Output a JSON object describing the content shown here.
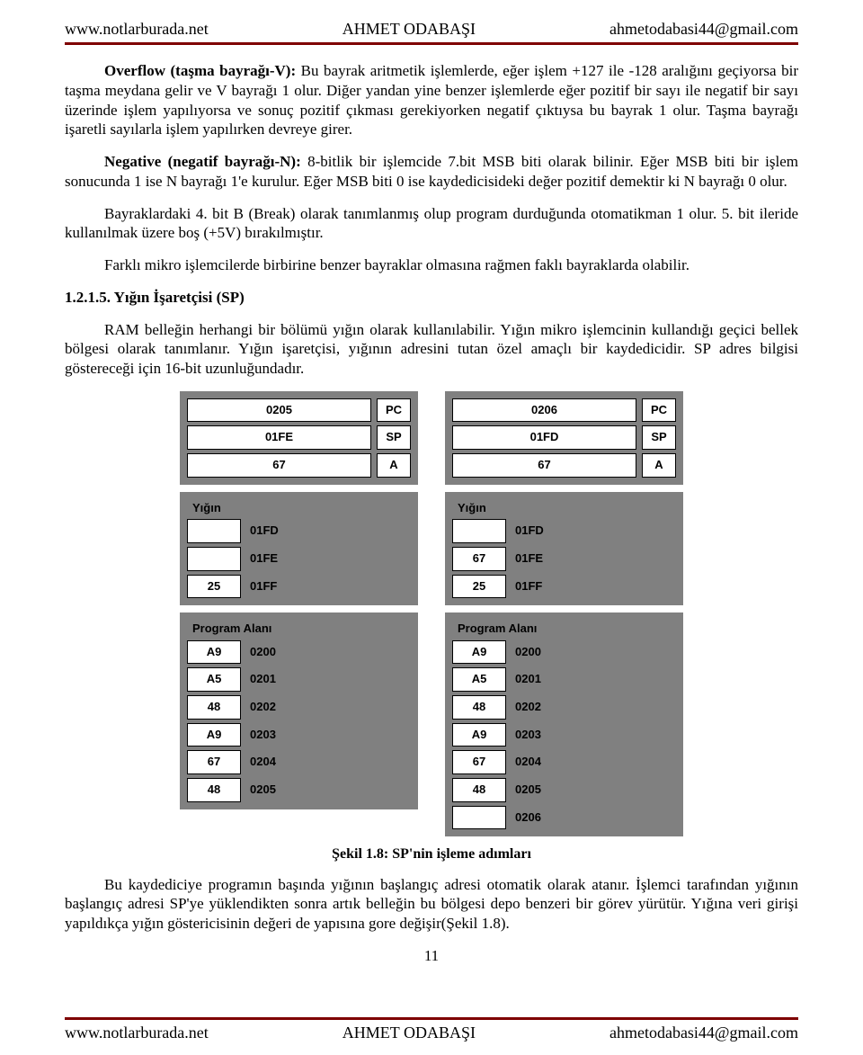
{
  "header": {
    "left": "www.notlarburada.net",
    "center": "AHMET ODABAŞI",
    "right": "ahmetodabasi44@gmail.com"
  },
  "p1_lead": "Overflow (taşma bayrağı-V):",
  "p1_rest": " Bu bayrak aritmetik işlemlerde, eğer işlem +127 ile -128 aralığını geçiyorsa bir taşma meydana gelir ve V bayrağı 1 olur. Diğer yandan yine benzer işlemlerde eğer pozitif bir sayı ile negatif bir sayı üzerinde işlem yapılıyorsa ve sonuç pozitif çıkması gerekiyorken negatif çıktıysa bu bayrak 1 olur. Taşma bayrağı işaretli sayılarla işlem yapılırken devreye girer.",
  "p2_lead": "Negative (negatif bayrağı-N):",
  "p2_rest": " 8-bitlik bir işlemcide 7.bit MSB biti olarak bilinir. Eğer MSB biti bir işlem sonucunda 1 ise N bayrağı 1'e kurulur. Eğer MSB biti 0 ise kaydedicisideki değer pozitif demektir ki N bayrağı 0 olur.",
  "p3": "Bayraklardaki 4. bit B (Break) olarak tanımlanmış olup program durduğunda otomatikman 1 olur. 5. bit ileride kullanılmak üzere boş (+5V) bırakılmıştır.",
  "p4": "Farklı mikro işlemcilerde birbirine benzer bayraklar olmasına rağmen faklı bayraklarda olabilir.",
  "section": "1.2.1.5. Yığın İşaretçisi (SP)",
  "p5": "RAM belleğin herhangi bir bölümü yığın olarak kullanılabilir. Yığın mikro işlemcinin kullandığı geçici bellek bölgesi olarak tanımlanır. Yığın işaretçisi, yığının adresini tutan özel amaçlı bir kaydedicidir. SP adres bilgisi göstereceği için 16-bit uzunluğundadır.",
  "caption": "Şekil 1.8: SP'nin işleme adımları",
  "p6": "Bu kaydediciye programın başında yığının başlangıç adresi otomatik olarak atanır. İşlemci tarafından yığının başlangıç adresi SP'ye yüklendikten sonra artık belleğin bu bölgesi depo benzeri bir görev yürütür. Yığına veri girişi yapıldıkça yığın göstericisinin değeri de yapısına gore değişir(Şekil 1.8).",
  "page": "11",
  "labels": {
    "yigin": "Yığın",
    "prog": "Program Alanı"
  },
  "diagram": {
    "left": {
      "regs": [
        {
          "val": "0205",
          "name": "PC"
        },
        {
          "val": "01FE",
          "name": "SP"
        },
        {
          "val": "67",
          "name": "A"
        }
      ],
      "stack": [
        {
          "val": "",
          "addr": "01FD"
        },
        {
          "val": "",
          "addr": "01FE"
        },
        {
          "val": "25",
          "addr": "01FF"
        }
      ],
      "prog": [
        {
          "val": "A9",
          "addr": "0200"
        },
        {
          "val": "A5",
          "addr": "0201"
        },
        {
          "val": "48",
          "addr": "0202"
        },
        {
          "val": "A9",
          "addr": "0203"
        },
        {
          "val": "67",
          "addr": "0204"
        },
        {
          "val": "48",
          "addr": "0205"
        }
      ]
    },
    "right": {
      "regs": [
        {
          "val": "0206",
          "name": "PC"
        },
        {
          "val": "01FD",
          "name": "SP"
        },
        {
          "val": "67",
          "name": "A"
        }
      ],
      "stack": [
        {
          "val": "",
          "addr": "01FD"
        },
        {
          "val": "67",
          "addr": "01FE"
        },
        {
          "val": "25",
          "addr": "01FF"
        }
      ],
      "prog": [
        {
          "val": "A9",
          "addr": "0200"
        },
        {
          "val": "A5",
          "addr": "0201"
        },
        {
          "val": "48",
          "addr": "0202"
        },
        {
          "val": "A9",
          "addr": "0203"
        },
        {
          "val": "67",
          "addr": "0204"
        },
        {
          "val": "48",
          "addr": "0205"
        },
        {
          "val": "",
          "addr": "0206"
        }
      ]
    }
  }
}
